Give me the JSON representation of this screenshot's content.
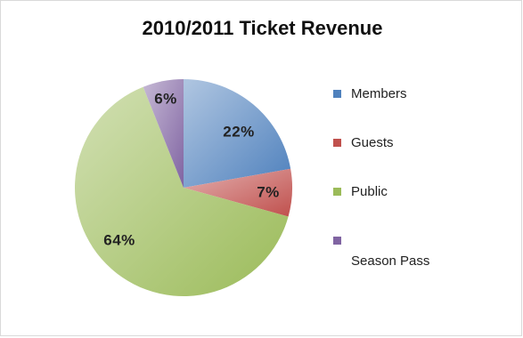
{
  "chart_data": {
    "type": "pie",
    "title": "2010/2011 Ticket Revenue",
    "slices": [
      {
        "name": "Members",
        "value": 22,
        "label": "22%",
        "color": "#4f81bd"
      },
      {
        "name": "Guests",
        "value": 7,
        "label": "7%",
        "color": "#c0504d"
      },
      {
        "name": "Public",
        "value": 64,
        "label": "64%",
        "color": "#9bbb59"
      },
      {
        "name": "Season Pass",
        "value": 6,
        "label": "6%",
        "color": "#8064a2"
      }
    ],
    "start_angle_deg": 0,
    "direction": "clockwise",
    "legend_position": "right"
  }
}
